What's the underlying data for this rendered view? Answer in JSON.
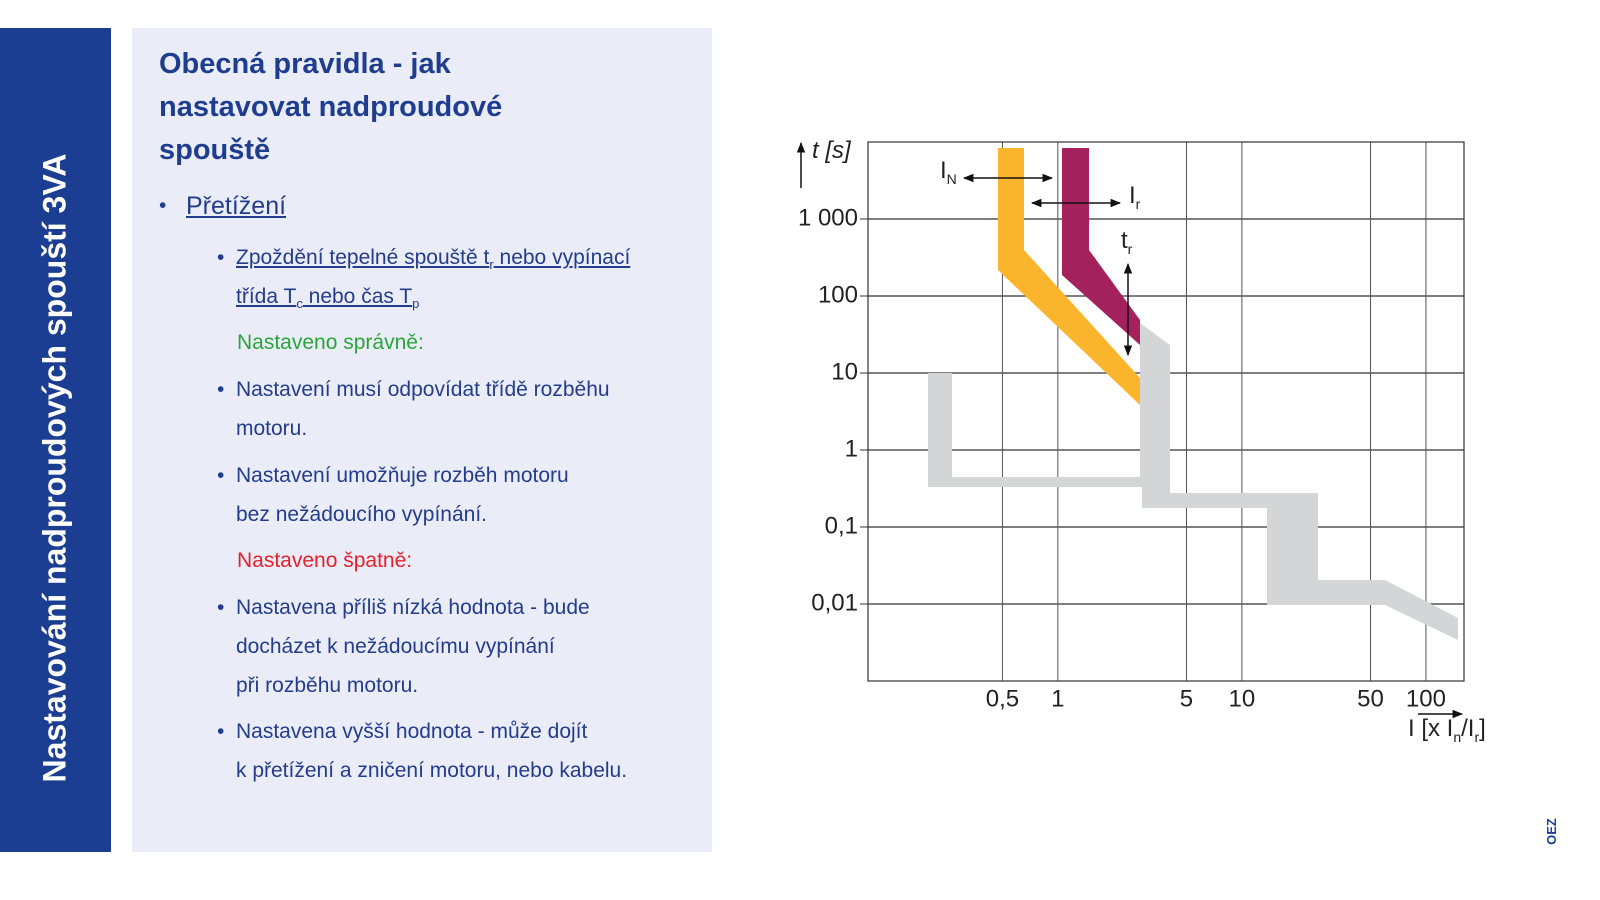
{
  "sidebar_title": "Nastavování nadproudových spouští 3VA",
  "heading": [
    "Obecná pravidla - jak",
    "nastavovat nadproudové",
    "spouště"
  ],
  "section": "Přetížení",
  "items": [
    {
      "lines": [
        [
          "Zpoždění tepelné spouště t",
          "r",
          " nebo vypínací"
        ],
        [
          "třída T",
          "c",
          " nebo čas T",
          "p"
        ]
      ]
    },
    {
      "lines": [
        [
          "Nastavení musí odpovídat třídě rozběhu"
        ],
        [
          "motoru."
        ]
      ]
    },
    {
      "lines": [
        [
          "Nastavení umožňuje rozběh motoru"
        ],
        [
          "bez nežádoucího vypínání."
        ]
      ]
    },
    {
      "lines": [
        [
          "Nastavena příliš nízká hodnota - bude"
        ],
        [
          "docházet k nežádoucímu vypínání"
        ],
        [
          "při rozběhu motoru."
        ]
      ]
    },
    {
      "lines": [
        [
          "Nastavena vyšší hodnota - může dojít"
        ],
        [
          "k přetížení a zničení motoru, nebo kabelu."
        ]
      ]
    }
  ],
  "notes": {
    "correct": "Nastaveno správně:",
    "wrong": "Nastaveno špatně:"
  },
  "logo": "OEZ",
  "chart_data": {
    "type": "line",
    "x_label": [
      "I [x I",
      "n",
      "/I",
      "r",
      "]"
    ],
    "y_label": [
      "t [s]"
    ],
    "annotations": [
      [
        "I",
        "N"
      ],
      [
        "I",
        "r"
      ],
      [
        "t",
        "r"
      ]
    ],
    "x_log": true,
    "y_log": true,
    "grid": true,
    "xlim": [
      0.093,
      161
    ],
    "xticks": [
      {
        "value": 0.5,
        "label": "0,5"
      },
      1,
      5,
      10,
      50,
      100
    ],
    "ylim": [
      0.001,
      10000
    ],
    "yticks": [
      {
        "value": 1000,
        "label": "1 000"
      },
      100,
      10,
      1,
      {
        "value": 0.1,
        "label": "0,1"
      },
      {
        "value": 0.01,
        "label": "0,01"
      }
    ]
  }
}
